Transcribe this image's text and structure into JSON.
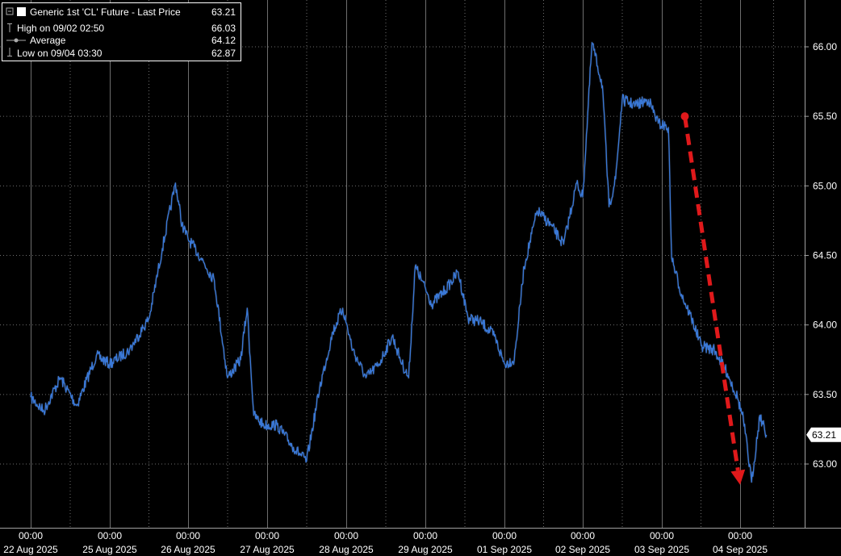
{
  "chart_data": {
    "type": "line",
    "legend": {
      "placement": "top-left",
      "title": "Generic 1st 'CL' Future - Last Price",
      "last_value": "63.21",
      "rows": [
        {
          "label": "High on 09/02 02:50",
          "value": "66.03",
          "icon": "high-marker-icon"
        },
        {
          "label": "Average",
          "value": "64.12",
          "icon": "average-marker-icon"
        },
        {
          "label": "Low on 09/04 03:30",
          "value": "62.87",
          "icon": "low-marker-icon"
        }
      ]
    },
    "y_axis": {
      "position": "right",
      "range": [
        62.6,
        66.3
      ],
      "ticks": [
        "66.00",
        "65.50",
        "65.00",
        "64.50",
        "64.00",
        "63.50",
        "63.00"
      ],
      "tick_values": [
        66.0,
        65.5,
        65.0,
        64.5,
        64.0,
        63.5,
        63.0
      ],
      "last_price_label": "63.21",
      "last_price_value": 63.21
    },
    "x_axis": {
      "time_label": "00:00",
      "dates": [
        "22 Aug 2025",
        "25 Aug 2025",
        "26 Aug 2025",
        "27 Aug 2025",
        "28 Aug 2025",
        "29 Aug 2025",
        "01 Sep 2025",
        "02 Sep 2025",
        "03 Sep 2025",
        "04 Sep 2025"
      ]
    },
    "grid": true,
    "colors": {
      "background": "#000000",
      "line": "#3a78d6",
      "line_shadow": "#000000",
      "grid": "#6e6e6e",
      "arrow": "#e0191b",
      "text": "#ffffff"
    },
    "annotation": {
      "type": "arrow",
      "start": {
        "x": "03 Sep 2025 07:00",
        "y": 65.5
      },
      "end": {
        "x": "04 Sep 2025 00:00",
        "y": 62.85
      }
    },
    "series": [
      {
        "values": [
          [
            "22 Aug 2025 00:00",
            63.48
          ],
          [
            "22 Aug 2025 04:00",
            63.38
          ],
          [
            "22 Aug 2025 09:00",
            63.62
          ],
          [
            "22 Aug 2025 14:00",
            63.42
          ],
          [
            "22 Aug 2025 20:00",
            63.78
          ],
          [
            "25 Aug 2025 00:00",
            63.72
          ],
          [
            "25 Aug 2025 06:00",
            63.82
          ],
          [
            "25 Aug 2025 12:00",
            64.05
          ],
          [
            "25 Aug 2025 16:00",
            64.55
          ],
          [
            "25 Aug 2025 20:00",
            65.02
          ],
          [
            "25 Aug 2025 22:00",
            64.72
          ],
          [
            "26 Aug 2025 00:00",
            64.62
          ],
          [
            "26 Aug 2025 04:00",
            64.48
          ],
          [
            "26 Aug 2025 08:00",
            64.32
          ],
          [
            "26 Aug 2025 12:00",
            63.62
          ],
          [
            "26 Aug 2025 16:00",
            63.75
          ],
          [
            "26 Aug 2025 18:00",
            64.12
          ],
          [
            "26 Aug 2025 20:00",
            63.35
          ],
          [
            "26 Aug 2025 23:00",
            63.28
          ],
          [
            "27 Aug 2025 03:00",
            63.28
          ],
          [
            "27 Aug 2025 08:00",
            63.12
          ],
          [
            "27 Aug 2025 12:00",
            63.02
          ],
          [
            "27 Aug 2025 16:00",
            63.55
          ],
          [
            "27 Aug 2025 20:00",
            63.95
          ],
          [
            "27 Aug 2025 23:00",
            64.12
          ],
          [
            "28 Aug 2025 02:00",
            63.82
          ],
          [
            "28 Aug 2025 06:00",
            63.62
          ],
          [
            "28 Aug 2025 10:00",
            63.72
          ],
          [
            "28 Aug 2025 14:00",
            63.92
          ],
          [
            "28 Aug 2025 17:00",
            63.72
          ],
          [
            "28 Aug 2025 19:00",
            63.62
          ],
          [
            "28 Aug 2025 21:00",
            64.42
          ],
          [
            "28 Aug 2025 23:00",
            64.32
          ],
          [
            "29 Aug 2025 02:00",
            64.15
          ],
          [
            "29 Aug 2025 06:00",
            64.25
          ],
          [
            "29 Aug 2025 10:00",
            64.38
          ],
          [
            "29 Aug 2025 13:00",
            64.05
          ],
          [
            "29 Aug 2025 17:00",
            64.02
          ],
          [
            "29 Aug 2025 21:00",
            63.92
          ],
          [
            "01 Sep 2025 00:00",
            63.72
          ],
          [
            "01 Sep 2025 03:00",
            63.75
          ],
          [
            "01 Sep 2025 06:00",
            64.42
          ],
          [
            "01 Sep 2025 10:00",
            64.82
          ],
          [
            "01 Sep 2025 14:00",
            64.72
          ],
          [
            "01 Sep 2025 18:00",
            64.58
          ],
          [
            "01 Sep 2025 22:00",
            65.02
          ],
          [
            "02 Sep 2025 00:00",
            64.92
          ],
          [
            "02 Sep 2025 02:50",
            66.03
          ],
          [
            "02 Sep 2025 06:00",
            65.72
          ],
          [
            "02 Sep 2025 08:00",
            64.85
          ],
          [
            "02 Sep 2025 10:00",
            65.05
          ],
          [
            "02 Sep 2025 12:00",
            65.62
          ],
          [
            "02 Sep 2025 16:00",
            65.58
          ],
          [
            "02 Sep 2025 20:00",
            65.62
          ],
          [
            "02 Sep 2025 23:00",
            65.45
          ],
          [
            "03 Sep 2025 02:00",
            65.42
          ],
          [
            "03 Sep 2025 03:00",
            64.48
          ],
          [
            "03 Sep 2025 06:00",
            64.22
          ],
          [
            "03 Sep 2025 09:00",
            64.05
          ],
          [
            "03 Sep 2025 12:00",
            63.85
          ],
          [
            "03 Sep 2025 16:00",
            63.82
          ],
          [
            "03 Sep 2025 20:00",
            63.65
          ],
          [
            "03 Sep 2025 23:00",
            63.48
          ],
          [
            "04 Sep 2025 01:00",
            63.32
          ],
          [
            "04 Sep 2025 03:30",
            62.87
          ],
          [
            "04 Sep 2025 06:00",
            63.35
          ],
          [
            "04 Sep 2025 08:00",
            63.21
          ]
        ]
      }
    ]
  }
}
